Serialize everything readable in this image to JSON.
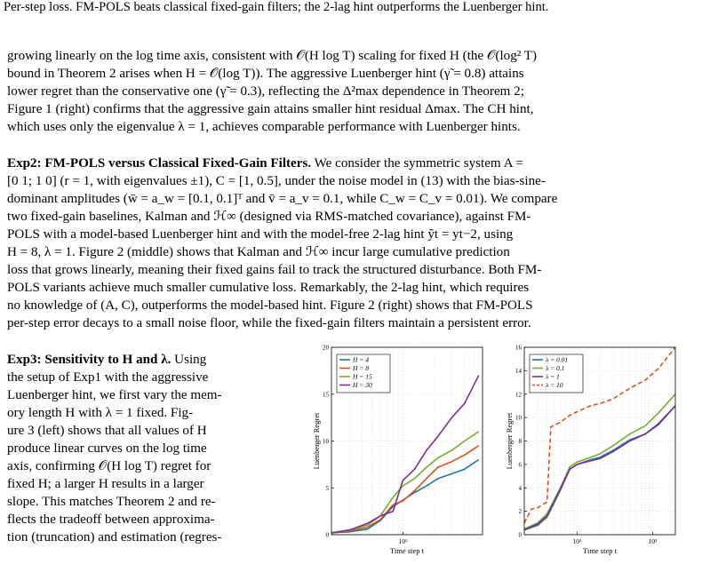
{
  "caption": "Per-step loss. FM-POLS beats classical fixed-gain filters; the 2-lag hint outperforms the Luenberger hint.",
  "para1": [
    "growing linearly on the log time axis, consistent with 𝒪(H log T) scaling for fixed H (the 𝒪(log² T)",
    "bound in Theorem 2 arises when H = 𝒪(log T)). The aggressive Luenberger hint (γ̃ = 0.8) attains",
    "lower regret than the conservative one (γ̃ = 0.3), reflecting the Δ²max dependence in Theorem 2;",
    "Figure 1 (right) confirms that the aggressive gain attains smaller hint residual Δmax. The CH hint,",
    "which uses only the eigenvalue λ = 1, achieves comparable performance with Luenberger hints."
  ],
  "exp2_heading": "Exp2: FM-POLS versus Classical Fixed-Gain Filters.",
  "para2": [
    " We consider the symmetric system A =",
    "[0 1; 1 0] (r = 1, with eigenvalues ±1), C = [1, 0.5], under the noise model in (13) with the bias-sine-",
    "dominant amplitudes (w̄ = a_w = [0.1, 0.1]ᵀ and v̄ = a_v = 0.1, while C_w = C_v = 0.01). We compare",
    "two fixed-gain baselines, Kalman and ℋ∞ (designed via RMS-matched covariance), against FM-",
    "POLS with a model-based Luenberger hint and with the model-free 2-lag hint ỹt = yt−2, using",
    "H = 8, λ = 1. Figure 2 (middle) shows that Kalman and ℋ∞ incur large cumulative prediction",
    "loss that grows linearly, meaning their fixed gains fail to track the structured disturbance. Both FM-",
    "POLS variants achieve much smaller cumulative loss. Remarkably, the 2-lag hint, which requires",
    "no knowledge of (A, C), outperforms the model-based hint. Figure 2 (right) shows that FM-POLS",
    "per-step error decays to a small noise floor, while the fixed-gain filters maintain a persistent error."
  ],
  "exp3_heading": "Exp3: Sensitivity to H and λ.",
  "para3": [
    " Using",
    "the setup of Exp1 with the aggressive",
    "Luenberger hint, we first vary the mem-",
    "ory length H with λ = 1 fixed. Fig-",
    "ure 3 (left) shows that all values of H",
    "produce linear curves on the log time",
    "axis, confirming 𝒪(H log T) regret for",
    "fixed H; a larger H results in a larger",
    "slope. This matches Theorem 2 and re-",
    "flects the tradeoff between approxima-",
    "tion (truncation) and estimation (regres-"
  ],
  "chart_data": [
    {
      "type": "line",
      "xlabel": "Time step t",
      "ylabel": "Luenberger Regret",
      "xscale": "log",
      "xlim": [
        20,
        600
      ],
      "ylim": [
        0,
        20
      ],
      "xticks": [
        "10²"
      ],
      "yticks": [
        0,
        5,
        10,
        15,
        20
      ],
      "grid": true,
      "legend": "top-left",
      "colors": [
        "#1f77b4",
        "#d95319",
        "#77ac30",
        "#7e2f8e"
      ],
      "series": [
        {
          "name": "H = 4",
          "x": [
            20,
            30,
            45,
            60,
            80,
            100,
            130,
            170,
            220,
            300,
            400,
            550
          ],
          "y": [
            0.2,
            0.3,
            0.6,
            1.5,
            3.0,
            3.7,
            4.5,
            5.2,
            6.0,
            6.5,
            7.0,
            8.0
          ]
        },
        {
          "name": "H = 8",
          "x": [
            20,
            30,
            45,
            60,
            80,
            100,
            130,
            170,
            220,
            300,
            400,
            550
          ],
          "y": [
            0.2,
            0.4,
            0.8,
            1.6,
            3.2,
            3.6,
            4.7,
            6.0,
            7.2,
            7.8,
            8.5,
            9.5
          ]
        },
        {
          "name": "H = 15",
          "x": [
            20,
            30,
            45,
            60,
            80,
            100,
            130,
            170,
            220,
            300,
            400,
            550
          ],
          "y": [
            0.2,
            0.5,
            1.0,
            2.0,
            4.0,
            5.2,
            6.0,
            7.2,
            8.2,
            9.0,
            10.0,
            11.0
          ]
        },
        {
          "name": "H = 30",
          "x": [
            20,
            30,
            45,
            60,
            80,
            100,
            130,
            170,
            220,
            300,
            400,
            550
          ],
          "y": [
            0.2,
            0.5,
            1.2,
            2.0,
            2.5,
            5.8,
            7.0,
            9.0,
            10.5,
            12.5,
            14.0,
            17.0
          ]
        }
      ]
    },
    {
      "type": "line",
      "xlabel": "Time step t",
      "ylabel": "Luenberger Regret",
      "xscale": "log",
      "xlim": [
        20,
        2000
      ],
      "ylim": [
        0,
        16
      ],
      "xticks": [
        "10²",
        "10³"
      ],
      "yticks": [
        0,
        2,
        4,
        6,
        8,
        10,
        12,
        14,
        16
      ],
      "grid": true,
      "legend": "top-left",
      "colors": [
        "#1f77b4",
        "#77ac30",
        "#7e2f8e",
        "#d95319"
      ],
      "series": [
        {
          "name": "λ = 0.01",
          "x": [
            20,
            30,
            40,
            60,
            80,
            100,
            150,
            200,
            300,
            500,
            800,
            1200,
            2000
          ],
          "y": [
            0.4,
            0.8,
            1.5,
            3.8,
            5.6,
            6.0,
            6.4,
            6.6,
            7.2,
            8.1,
            8.6,
            9.5,
            11.0
          ]
        },
        {
          "name": "λ = 0.1",
          "x": [
            20,
            30,
            40,
            60,
            80,
            100,
            150,
            200,
            300,
            500,
            800,
            1200,
            2000
          ],
          "y": [
            0.5,
            1.0,
            1.8,
            4.0,
            5.8,
            6.2,
            6.6,
            6.9,
            7.6,
            8.6,
            9.3,
            10.4,
            12.0
          ]
        },
        {
          "name": "λ = 1",
          "x": [
            20,
            30,
            40,
            60,
            80,
            100,
            150,
            200,
            300,
            500,
            800,
            1200,
            2000
          ],
          "y": [
            0.4,
            0.9,
            1.6,
            3.9,
            5.6,
            6.0,
            6.3,
            6.5,
            7.1,
            8.0,
            8.6,
            9.4,
            11.0
          ]
        },
        {
          "name": "λ = 10",
          "x": [
            20,
            25,
            30,
            40,
            45,
            60,
            80,
            100,
            150,
            200,
            300,
            500,
            800,
            1200,
            2000
          ],
          "y": [
            1.0,
            2.2,
            2.3,
            2.8,
            9.2,
            9.6,
            10.2,
            10.5,
            11.0,
            11.2,
            11.6,
            12.5,
            13.2,
            14.2,
            16.0
          ]
        }
      ]
    }
  ]
}
